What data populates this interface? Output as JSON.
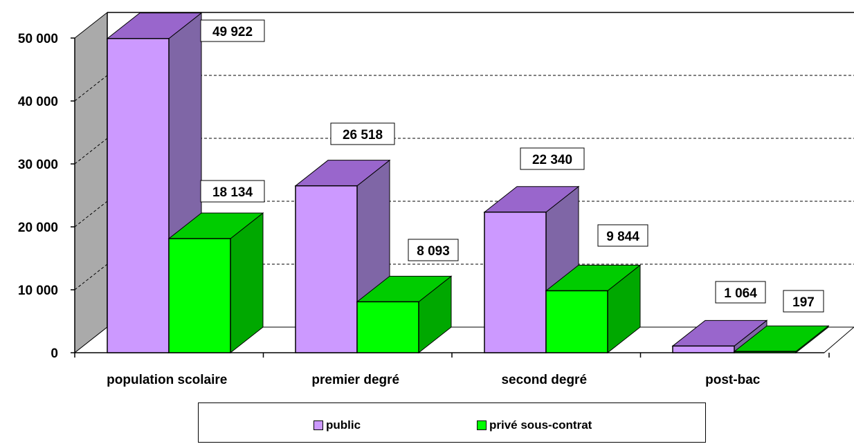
{
  "chart_data": {
    "type": "bar",
    "categories": [
      "population scolaire",
      "premier degré",
      "second degré",
      "post-bac"
    ],
    "series": [
      {
        "name": "public",
        "values": [
          49922,
          26518,
          22340,
          1064
        ]
      },
      {
        "name": "privé sous-contrat",
        "values": [
          18134,
          8093,
          9844,
          197
        ]
      }
    ],
    "data_labels": [
      [
        "49 922",
        "26 518",
        "22 340",
        "1 064"
      ],
      [
        "18 134",
        "8 093",
        "9 844",
        "197"
      ]
    ],
    "yticks": [
      0,
      10000,
      20000,
      30000,
      40000,
      50000
    ],
    "ytick_labels": [
      "0",
      "10 000",
      "20 000",
      "30 000",
      "40 000",
      "50 000"
    ],
    "ylim": [
      0,
      50000
    ],
    "legend_position": "bottom",
    "grid": true,
    "colors": {
      "public_front": "#cc99ff",
      "public_top": "#9966cc",
      "public_side": "#7f66a6",
      "private_front": "#00ff00",
      "private_top": "#00cc00",
      "private_side": "#00a800",
      "wall": "#aaaaaa"
    }
  },
  "legend": {
    "items": [
      {
        "label": "public",
        "color": "#cc99ff"
      },
      {
        "label": "privé sous-contrat",
        "color": "#00ff00"
      }
    ]
  }
}
